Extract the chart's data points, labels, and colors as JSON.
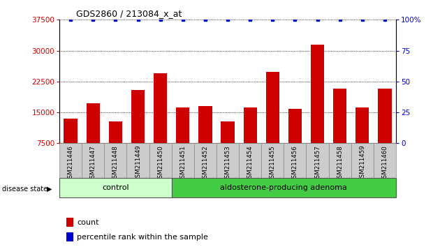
{
  "title": "GDS2860 / 213084_x_at",
  "samples": [
    "GSM211446",
    "GSM211447",
    "GSM211448",
    "GSM211449",
    "GSM211450",
    "GSM211451",
    "GSM211452",
    "GSM211453",
    "GSM211454",
    "GSM211455",
    "GSM211456",
    "GSM211457",
    "GSM211458",
    "GSM211459",
    "GSM211460"
  ],
  "counts": [
    13500,
    17200,
    12800,
    20500,
    24500,
    16200,
    16500,
    12800,
    16200,
    24800,
    15800,
    31500,
    20800,
    16200,
    20800
  ],
  "percentile_ranks": [
    100,
    100,
    100,
    100,
    100,
    100,
    100,
    100,
    100,
    100,
    100,
    100,
    100,
    100,
    100
  ],
  "control_count": 5,
  "bar_color": "#cc0000",
  "percentile_color": "#0000cc",
  "ylim_left": [
    7500,
    37500
  ],
  "ylim_right": [
    0,
    100
  ],
  "yticks_left": [
    7500,
    15000,
    22500,
    30000,
    37500
  ],
  "yticks_right": [
    0,
    25,
    50,
    75,
    100
  ],
  "ctrl_color": "#ccffcc",
  "ada_color": "#44cc44",
  "tick_bg": "#cccccc",
  "background_color": "#ffffff"
}
